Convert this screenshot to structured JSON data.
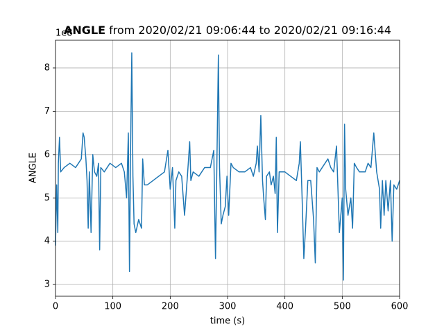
{
  "chart_data": {
    "type": "line",
    "title_prefix": "ANGLE",
    "title": "from 2020/02/21 09:06:44 to 2020/02/21 09:16:44",
    "xlabel": "time (s)",
    "ylabel": "ANGLE",
    "y_offset_label": "1e8",
    "x": [
      0,
      2,
      4,
      5,
      7,
      9,
      15,
      25,
      35,
      45,
      48,
      50,
      53,
      55,
      57,
      59,
      62,
      65,
      68,
      72,
      75,
      77,
      79,
      85,
      95,
      105,
      115,
      120,
      124,
      127,
      129,
      131,
      133,
      135,
      137,
      140,
      145,
      150,
      152,
      155,
      160,
      170,
      180,
      190,
      196,
      200,
      204,
      208,
      210,
      215,
      220,
      225,
      230,
      234,
      236,
      240,
      250,
      260,
      270,
      276,
      279,
      281,
      284,
      286,
      289,
      292,
      296,
      299,
      302,
      306,
      310,
      320,
      330,
      340,
      345,
      350,
      352,
      355,
      358,
      361,
      363,
      366,
      368,
      373,
      376,
      380,
      383,
      385,
      387,
      390,
      400,
      410,
      420,
      425,
      427,
      430,
      433,
      436,
      440,
      445,
      450,
      453,
      456,
      460,
      465,
      470,
      475,
      480,
      485,
      490,
      493,
      495,
      500,
      502,
      504,
      506,
      510,
      515,
      518,
      521,
      525,
      530,
      540,
      545,
      550,
      555,
      560,
      565,
      567,
      570,
      573,
      576,
      580,
      584,
      587,
      590,
      595,
      600
    ],
    "series": [
      {
        "name": "ANGLE",
        "color": "#1f77b4",
        "values": [
          3.9,
          5.3,
          4.2,
          5.8,
          6.4,
          5.6,
          5.7,
          5.8,
          5.7,
          5.9,
          6.5,
          6.4,
          5.9,
          5.4,
          4.3,
          5.6,
          4.2,
          6.0,
          5.6,
          5.5,
          5.8,
          3.8,
          5.7,
          5.6,
          5.8,
          5.7,
          5.8,
          5.6,
          5.0,
          6.5,
          3.3,
          6.2,
          8.35,
          5.5,
          4.4,
          4.2,
          4.5,
          4.3,
          5.9,
          5.3,
          5.3,
          5.4,
          5.5,
          5.6,
          6.1,
          5.2,
          5.7,
          4.3,
          5.4,
          5.6,
          5.5,
          4.6,
          5.5,
          6.3,
          5.4,
          5.6,
          5.5,
          5.7,
          5.7,
          6.1,
          3.6,
          5.4,
          8.3,
          5.7,
          4.4,
          4.6,
          4.8,
          5.5,
          4.6,
          5.8,
          5.7,
          5.6,
          5.6,
          5.7,
          5.5,
          5.8,
          6.2,
          5.6,
          6.9,
          5.4,
          5.0,
          4.5,
          5.5,
          5.6,
          5.3,
          5.5,
          5.1,
          6.4,
          4.2,
          5.6,
          5.6,
          5.5,
          5.4,
          5.8,
          6.3,
          5.0,
          3.6,
          4.3,
          5.4,
          5.4,
          4.5,
          3.5,
          5.7,
          5.6,
          5.7,
          5.8,
          5.9,
          5.7,
          5.6,
          6.2,
          5.0,
          4.2,
          5.0,
          3.1,
          6.7,
          5.2,
          4.6,
          5.0,
          4.3,
          5.8,
          5.7,
          5.6,
          5.6,
          5.8,
          5.7,
          6.5,
          5.6,
          5.2,
          4.3,
          5.4,
          4.6,
          5.4,
          4.7,
          5.4,
          4.0,
          5.3,
          5.2,
          5.4
        ]
      }
    ],
    "xlim": [
      0,
      600
    ],
    "xticks": [
      0,
      100,
      200,
      300,
      400,
      500,
      600
    ],
    "ylim": [
      2.73,
      8.64
    ],
    "yticks": [
      3,
      4,
      5,
      6,
      7,
      8
    ],
    "grid": true
  }
}
